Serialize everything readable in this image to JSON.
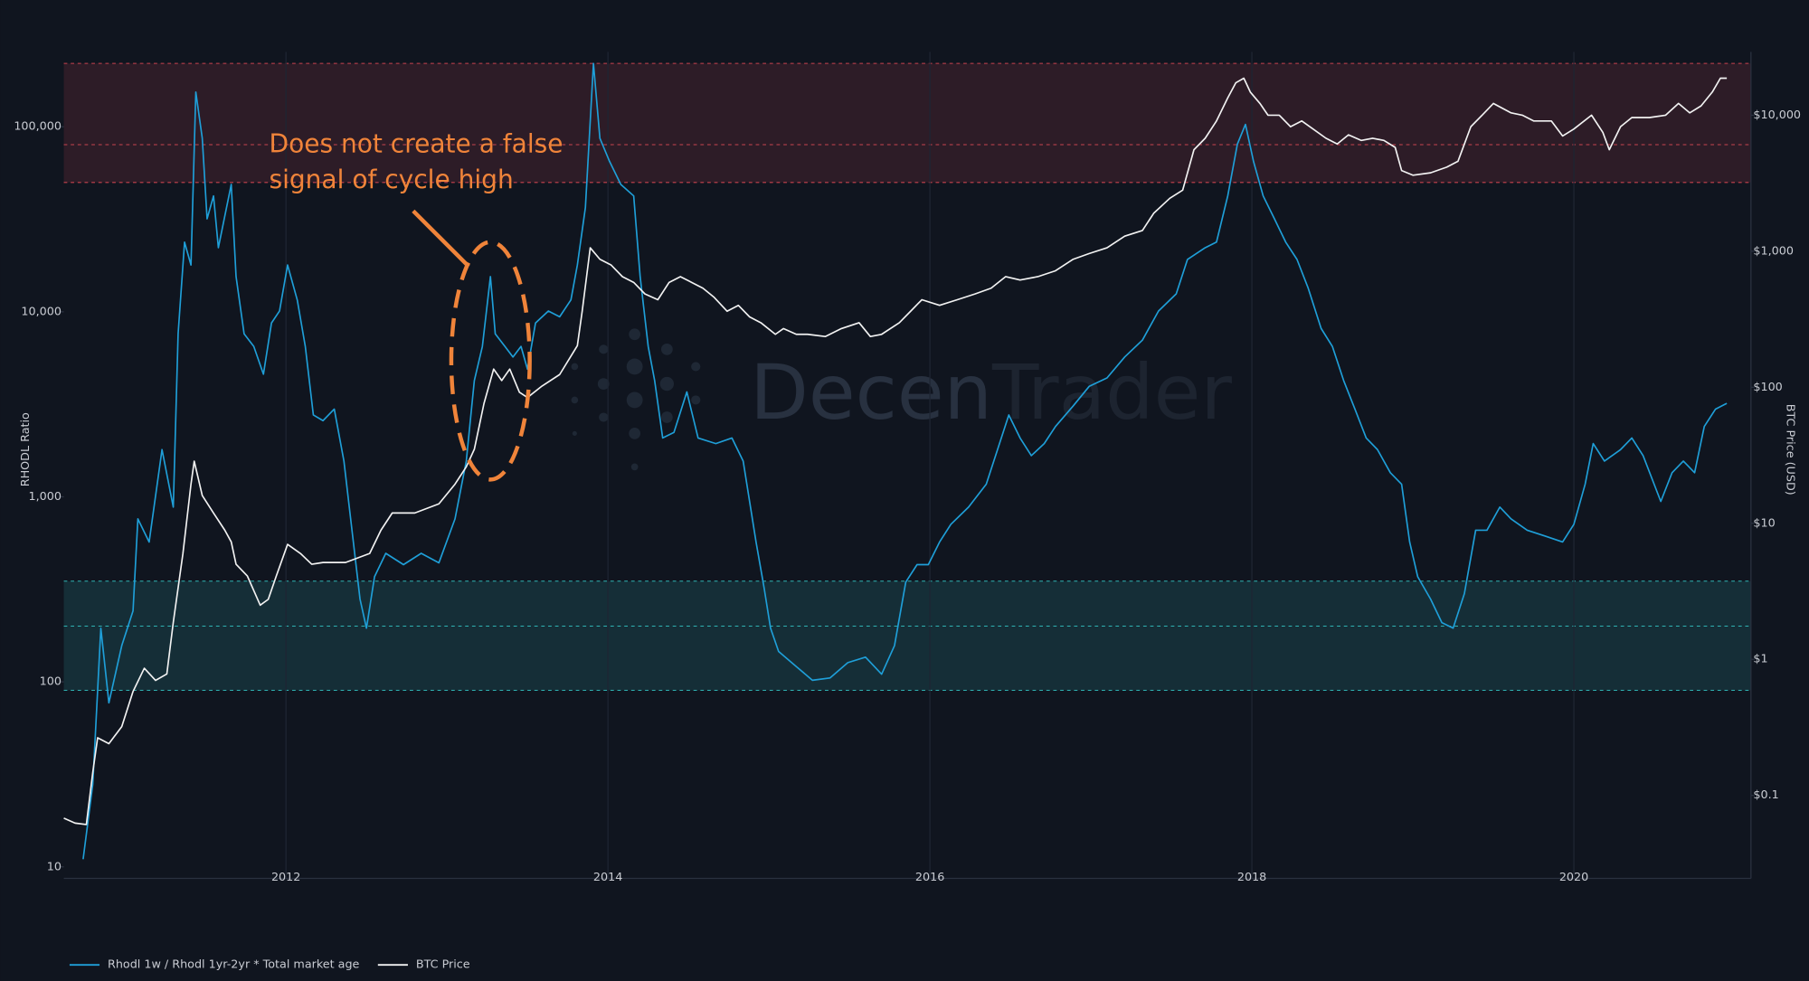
{
  "chart_data": {
    "type": "line",
    "ylabel": "RHODL Ratio",
    "y2label": "BTC Price (USD)",
    "watermark": [
      "Decen",
      "Trader"
    ],
    "annotation": [
      "Does not create a false",
      "signal of cycle high"
    ],
    "xlim": [
      2010.62,
      2021.1
    ],
    "xticks": [
      2012,
      2014,
      2016,
      2018,
      2020
    ],
    "ylog": true,
    "ylim": [
      10,
      254000
    ],
    "yticks": [
      10,
      100,
      {
        "value": 1000,
        "label": "1,000"
      },
      {
        "value": 10000,
        "label": "10,000"
      },
      {
        "value": 100000,
        "label": "100,000"
      }
    ],
    "y2log": true,
    "y2lim": [
      0.0298,
      29200
    ],
    "y2ticks": [
      {
        "value": 0.1,
        "label": "$0.1"
      },
      {
        "value": 1,
        "label": "$1"
      },
      {
        "value": 10,
        "label": "$10"
      },
      {
        "value": 100,
        "label": "$100"
      },
      {
        "value": 1000,
        "label": "$1,000"
      },
      {
        "value": 10000,
        "label": "$10,000"
      }
    ],
    "grid": true,
    "legend": "bottom-left",
    "bands": [
      {
        "values": [
          50000,
          80000,
          220000
        ],
        "color": "#c8434f"
      },
      {
        "values": [
          90,
          200,
          350
        ],
        "color": "#2fb3b3"
      }
    ],
    "series": [
      {
        "name": "Rhodl 1w / Rhodl 1yr-2yr * Total market age",
        "color": "#1f9fd8",
        "axis": "y",
        "x": [
          2010.74,
          2010.8,
          2010.85,
          2010.9,
          2010.98,
          2011.05,
          2011.08,
          2011.15,
          2011.23,
          2011.3,
          2011.33,
          2011.37,
          2011.41,
          2011.44,
          2011.48,
          2011.51,
          2011.55,
          2011.58,
          2011.66,
          2011.69,
          2011.74,
          2011.8,
          2011.86,
          2011.91,
          2011.96,
          2012.01,
          2012.07,
          2012.12,
          2012.17,
          2012.23,
          2012.3,
          2012.36,
          2012.41,
          2012.46,
          2012.5,
          2012.55,
          2012.62,
          2012.73,
          2012.84,
          2012.95,
          2013.05,
          2013.12,
          2013.17,
          2013.22,
          2013.27,
          2013.3,
          2013.36,
          2013.41,
          2013.46,
          2013.5,
          2013.55,
          2013.63,
          2013.7,
          2013.77,
          2013.81,
          2013.86,
          2013.91,
          2013.95,
          2014.01,
          2014.08,
          2014.16,
          2014.2,
          2014.25,
          2014.29,
          2014.34,
          2014.41,
          2014.49,
          2014.56,
          2014.67,
          2014.77,
          2014.84,
          2014.92,
          2014.97,
          2015.01,
          2015.06,
          2015.17,
          2015.27,
          2015.38,
          2015.49,
          2015.6,
          2015.7,
          2015.78,
          2015.85,
          2015.92,
          2015.99,
          2016.06,
          2016.13,
          2016.24,
          2016.35,
          2016.42,
          2016.49,
          2016.56,
          2016.63,
          2016.71,
          2016.78,
          2016.89,
          2016.99,
          2017.1,
          2017.21,
          2017.32,
          2017.42,
          2017.53,
          2017.6,
          2017.71,
          2017.78,
          2017.85,
          2017.91,
          2017.96,
          2018.01,
          2018.07,
          2018.14,
          2018.21,
          2018.28,
          2018.35,
          2018.43,
          2018.5,
          2018.57,
          2018.64,
          2018.71,
          2018.78,
          2018.86,
          2018.93,
          2018.98,
          2019.03,
          2019.11,
          2019.18,
          2019.25,
          2019.32,
          2019.39,
          2019.46,
          2019.54,
          2019.61,
          2019.71,
          2019.82,
          2019.93,
          2020.0,
          2020.07,
          2020.12,
          2020.19,
          2020.29,
          2020.36,
          2020.43,
          2020.54,
          2020.61,
          2020.68,
          2020.75,
          2020.81,
          2020.88,
          2020.95
        ],
        "values": [
          11,
          28,
          195,
          77,
          157,
          242,
          760,
          570,
          1800,
          880,
          7600,
          23800,
          17900,
          154000,
          86700,
          31800,
          42300,
          22200,
          48800,
          15500,
          7600,
          6500,
          4600,
          8700,
          10100,
          17900,
          11600,
          6500,
          2770,
          2580,
          2980,
          1560,
          660,
          280,
          195,
          370,
          495,
          430,
          495,
          440,
          760,
          1560,
          4250,
          6500,
          15500,
          7600,
          6500,
          5700,
          6500,
          4900,
          8700,
          10100,
          9400,
          11600,
          17900,
          36600,
          220000,
          86700,
          65000,
          48800,
          42300,
          15500,
          6500,
          4250,
          2080,
          2230,
          3690,
          2080,
          1940,
          2080,
          1560,
          570,
          322,
          195,
          146,
          121,
          102,
          105,
          127,
          136,
          110,
          157,
          346,
          430,
          430,
          570,
          710,
          880,
          1170,
          1800,
          2770,
          2080,
          1670,
          1940,
          2400,
          3100,
          3960,
          4390,
          5700,
          7030,
          10100,
          12500,
          19200,
          22200,
          23800,
          42300,
          80700,
          103000,
          65000,
          42300,
          31800,
          23800,
          19200,
          13400,
          8130,
          6500,
          4250,
          2980,
          2080,
          1800,
          1350,
          1170,
          570,
          370,
          280,
          209,
          195,
          300,
          660,
          660,
          880,
          760,
          660,
          614,
          570,
          710,
          1170,
          1940,
          1560,
          1800,
          2080,
          1670,
          944,
          1350,
          1560,
          1350,
          2400,
          2980,
          3200
        ]
      },
      {
        "name": "BTC Price",
        "color": "#f2f2f2",
        "axis": "y2",
        "x": [
          2010.62,
          2010.69,
          2010.76,
          2010.8,
          2010.83,
          2010.9,
          2010.98,
          2011.05,
          2011.12,
          2011.19,
          2011.26,
          2011.3,
          2011.36,
          2011.41,
          2011.43,
          2011.48,
          2011.55,
          2011.62,
          2011.66,
          2011.69,
          2011.76,
          2011.84,
          2011.89,
          2011.94,
          2012.01,
          2012.09,
          2012.16,
          2012.23,
          2012.37,
          2012.52,
          2012.59,
          2012.66,
          2012.8,
          2012.95,
          2013.05,
          2013.12,
          2013.17,
          2013.23,
          2013.29,
          2013.34,
          2013.39,
          2013.45,
          2013.5,
          2013.59,
          2013.7,
          2013.81,
          2013.84,
          2013.89,
          2013.95,
          2014.02,
          2014.09,
          2014.16,
          2014.23,
          2014.31,
          2014.38,
          2014.45,
          2014.52,
          2014.59,
          2014.66,
          2014.74,
          2014.81,
          2014.88,
          2014.95,
          2015.04,
          2015.09,
          2015.17,
          2015.24,
          2015.35,
          2015.45,
          2015.56,
          2015.63,
          2015.7,
          2015.81,
          2015.88,
          2015.95,
          2016.06,
          2016.17,
          2016.28,
          2016.38,
          2016.47,
          2016.56,
          2016.67,
          2016.78,
          2016.89,
          2016.99,
          2017.1,
          2017.21,
          2017.32,
          2017.39,
          2017.49,
          2017.57,
          2017.64,
          2017.71,
          2017.78,
          2017.85,
          2017.9,
          2017.95,
          2017.99,
          2018.05,
          2018.1,
          2018.17,
          2018.24,
          2018.31,
          2018.38,
          2018.46,
          2018.53,
          2018.6,
          2018.68,
          2018.75,
          2018.82,
          2018.89,
          2018.93,
          2019.0,
          2019.11,
          2019.21,
          2019.28,
          2019.36,
          2019.43,
          2019.5,
          2019.61,
          2019.68,
          2019.75,
          2019.86,
          2019.93,
          2020.0,
          2020.11,
          2020.18,
          2020.22,
          2020.29,
          2020.36,
          2020.47,
          2020.57,
          2020.65,
          2020.72,
          2020.79,
          2020.86,
          2020.91,
          2020.95
        ],
        "values": [
          0.068,
          0.0625,
          0.061,
          0.148,
          0.265,
          0.24,
          0.32,
          0.58,
          0.86,
          0.7,
          0.78,
          1.87,
          6.0,
          19.4,
          28.6,
          16.0,
          11.9,
          8.9,
          7.3,
          5.0,
          4.1,
          2.5,
          2.76,
          4.1,
          7.0,
          6.0,
          5.0,
          5.15,
          5.15,
          6.0,
          8.9,
          11.9,
          11.9,
          13.9,
          19.4,
          26,
          35,
          76,
          136,
          112,
          136,
          92,
          84,
          102,
          124,
          202,
          362,
          1060,
          873,
          791,
          650,
          590,
          485,
          440,
          590,
          650,
          590,
          535,
          458,
          362,
          400,
          329,
          298,
          245,
          270,
          245,
          245,
          236,
          270,
          298,
          236,
          245,
          298,
          362,
          440,
          400,
          440,
          485,
          535,
          650,
          614,
          650,
          718,
          873,
          962,
          1060,
          1290,
          1420,
          1900,
          2450,
          2810,
          5570,
          6770,
          9070,
          13400,
          17300,
          18700,
          14800,
          12200,
          10000,
          10000,
          8230,
          9070,
          7910,
          6770,
          6140,
          7170,
          6520,
          6770,
          6520,
          5800,
          3920,
          3620,
          3770,
          4150,
          4580,
          8230,
          10000,
          12200,
          10400,
          10000,
          9070,
          9070,
          7030,
          7910,
          10000,
          7470,
          5570,
          8230,
          9610,
          9610,
          10000,
          12200,
          10400,
          11700,
          14800,
          18700,
          18700
        ]
      }
    ]
  }
}
